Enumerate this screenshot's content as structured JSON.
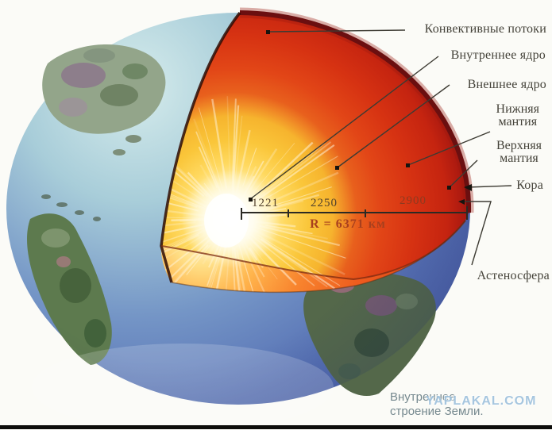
{
  "illustration": {
    "type": "earth-internal-structure-cutaway",
    "caption": {
      "line1": "Внутреннее",
      "line2": "строение Земли."
    },
    "watermark": "YAPLAKAL.COM"
  },
  "layer_labels": {
    "convective_flows": "Конвективные потоки",
    "inner_core": "Внутреннее ядро",
    "outer_core": "Внешнее ядро",
    "lower_mantle_line1": "Нижняя",
    "lower_mantle_line2": "мантия",
    "upper_mantle_line1": "Верхняя",
    "upper_mantle_line2": "мантия",
    "crust": "Кора",
    "asthenosphere": "Астеносфера"
  },
  "radius_scale": {
    "inner_core_radius_km": "1221",
    "outer_core_thickness_km": "2250",
    "mantle_thickness_km": "2900",
    "total_radius": "R = 6371 км"
  },
  "colors": {
    "ocean_deep": "#4d62ae",
    "ocean_light": "#d6ecec",
    "mantle_red": "#d93415",
    "outer_core_yellow": "#fbc838",
    "inner_core_white": "#fffef5",
    "crust_rim_dark": "#6b0f10",
    "label_text": "#45433a",
    "radius_text": "#a8401e",
    "caption_text": "#76898f",
    "watermark_blue": "#9fc2dd"
  }
}
